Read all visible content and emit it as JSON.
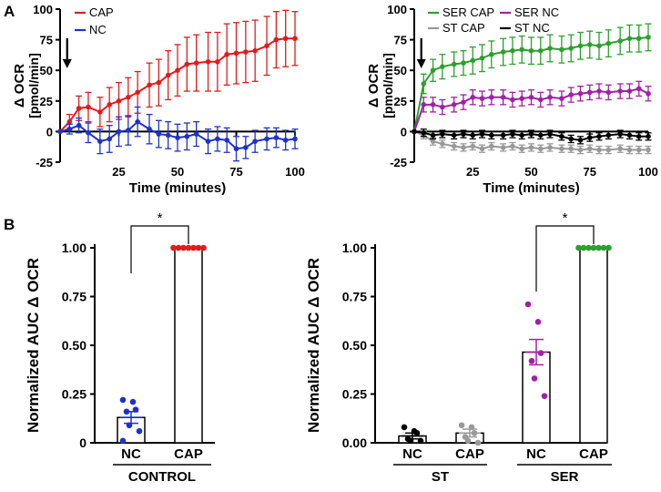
{
  "panel_labels": {
    "a": "A",
    "b": "B"
  },
  "colors": {
    "cap": "#e31a1c",
    "nc": "#1f31c8",
    "ser_cap": "#2ca02c",
    "ser_nc": "#a020a8",
    "st_cap": "#999999",
    "st_nc": "#000000"
  },
  "chart_data": [
    {
      "id": "A-left",
      "type": "line",
      "ylabel_line1": "Δ OCR",
      "ylabel_line2": "[pmol/min]",
      "xlabel": "Time (minutes)",
      "xlim": [
        0,
        100
      ],
      "ylim": [
        -25,
        100
      ],
      "xticks": [
        "25",
        "50",
        "75",
        "100"
      ],
      "yticks": [
        "-25",
        "0",
        "25",
        "50",
        "75",
        "100"
      ],
      "arrow_x": 3,
      "x": [
        0,
        4,
        8,
        12,
        17,
        21,
        25,
        29,
        33,
        38,
        42,
        46,
        50,
        54,
        58,
        63,
        67,
        71,
        75,
        79,
        83,
        88,
        92,
        96,
        100
      ],
      "series": [
        {
          "name": "CAP",
          "color": "#e31a1c",
          "values": [
            0,
            8,
            19,
            20,
            16,
            22,
            25,
            28,
            32,
            38,
            40,
            46,
            50,
            55,
            56,
            57,
            57,
            63,
            64,
            65,
            66,
            70,
            75,
            76,
            76
          ],
          "errors": [
            0,
            6,
            10,
            12,
            12,
            14,
            15,
            16,
            17,
            18,
            19,
            20,
            21,
            22,
            23,
            24,
            24,
            25,
            25,
            25,
            25,
            24,
            23,
            23,
            22
          ]
        },
        {
          "name": "NC",
          "color": "#1f31c8",
          "values": [
            0,
            2,
            5,
            -1,
            -8,
            -6,
            0,
            1,
            8,
            2,
            -2,
            -3,
            -5,
            -4,
            -2,
            -8,
            -6,
            -7,
            -14,
            -13,
            -8,
            -6,
            -5,
            -7,
            -6
          ],
          "errors": [
            0,
            4,
            6,
            8,
            10,
            11,
            12,
            12,
            12,
            12,
            11,
            11,
            11,
            11,
            10,
            10,
            10,
            10,
            10,
            9,
            9,
            9,
            8,
            8,
            8
          ]
        }
      ]
    },
    {
      "id": "A-right",
      "type": "line",
      "ylabel_line1": "Δ OCR",
      "ylabel_line2": "[pmol/min]",
      "xlabel": "Time (minutes)",
      "xlim": [
        0,
        100
      ],
      "ylim": [
        -25,
        100
      ],
      "xticks": [
        "25",
        "50",
        "75",
        "100"
      ],
      "yticks": [
        "-25",
        "0",
        "25",
        "50",
        "75",
        "100"
      ],
      "arrow_x": 3,
      "x": [
        0,
        4,
        8,
        12,
        17,
        21,
        25,
        29,
        33,
        38,
        42,
        46,
        50,
        54,
        58,
        63,
        67,
        71,
        75,
        79,
        83,
        88,
        92,
        96,
        100
      ],
      "series": [
        {
          "name": "SER CAP",
          "color": "#2ca02c",
          "values": [
            0,
            39,
            50,
            53,
            55,
            56,
            58,
            60,
            63,
            65,
            66,
            67,
            66,
            66,
            68,
            67,
            68,
            70,
            71,
            70,
            72,
            74,
            76,
            76,
            77
          ],
          "errors": [
            0,
            8,
            9,
            10,
            10,
            10,
            11,
            11,
            11,
            11,
            11,
            11,
            11,
            11,
            11,
            11,
            11,
            11,
            11,
            11,
            11,
            11,
            11,
            11,
            11
          ]
        },
        {
          "name": "SER NC",
          "color": "#a020a8",
          "values": [
            0,
            22,
            22,
            20,
            22,
            24,
            28,
            27,
            28,
            28,
            26,
            27,
            28,
            26,
            28,
            27,
            30,
            31,
            32,
            33,
            32,
            33,
            33,
            35,
            31
          ],
          "errors": [
            0,
            6,
            6,
            6,
            6,
            6,
            6,
            6,
            6,
            6,
            6,
            6,
            6,
            6,
            6,
            6,
            6,
            6,
            6,
            6,
            6,
            6,
            6,
            6,
            6
          ]
        },
        {
          "name": "ST CAP",
          "color": "#999999",
          "values": [
            0,
            -3,
            -8,
            -10,
            -12,
            -13,
            -12,
            -14,
            -12,
            -13,
            -12,
            -14,
            -13,
            -14,
            -13,
            -14,
            -14,
            -15,
            -14,
            -15,
            -15,
            -14,
            -15,
            -15,
            -15
          ],
          "errors": [
            0,
            3,
            3,
            3,
            3,
            3,
            3,
            3,
            3,
            3,
            3,
            3,
            3,
            3,
            3,
            3,
            3,
            3,
            3,
            3,
            3,
            3,
            3,
            3,
            3
          ]
        },
        {
          "name": "ST NC",
          "color": "#000000",
          "values": [
            0,
            -1,
            -3,
            -2,
            -3,
            -2,
            -3,
            -2,
            -3,
            -3,
            -2,
            -3,
            -2,
            -3,
            -2,
            -4,
            -6,
            -7,
            -5,
            -4,
            -3,
            -2,
            -3,
            -4,
            -4
          ],
          "errors": [
            0,
            3,
            3,
            3,
            3,
            3,
            3,
            3,
            3,
            3,
            3,
            3,
            3,
            3,
            3,
            3,
            3,
            3,
            3,
            3,
            3,
            3,
            3,
            3,
            3
          ]
        }
      ]
    },
    {
      "id": "B-left",
      "type": "bar",
      "ylabel": "Normalized AUC Δ OCR",
      "ylim": [
        0,
        1.0
      ],
      "yticks": [
        "0",
        "0.25",
        "0.50",
        "0.75",
        "1.00"
      ],
      "categories": [
        "NC",
        "CAP"
      ],
      "group_labels": [
        "CONTROL"
      ],
      "significance": "*",
      "bars": [
        {
          "label": "NC",
          "value": 0.13,
          "sem": 0.03,
          "color": "#1f31c8",
          "points": [
            0.22,
            0.21,
            0.17,
            0.16,
            0.09,
            0.06,
            0.01
          ]
        },
        {
          "label": "CAP",
          "value": 1.0,
          "sem": 0,
          "color": "#e31a1c",
          "points": [
            1.0,
            1.0,
            1.0,
            1.0,
            1.0,
            1.0,
            1.0
          ]
        }
      ]
    },
    {
      "id": "B-right",
      "type": "bar",
      "ylabel": "Normalized AUC Δ OCR",
      "ylim": [
        0,
        1.0
      ],
      "yticks": [
        "0.00",
        "0.25",
        "0.50",
        "0.75",
        "1.00"
      ],
      "categories": [
        "NC",
        "CAP",
        "NC",
        "CAP"
      ],
      "group_labels": [
        "ST",
        "SER"
      ],
      "significance": "*",
      "bars": [
        {
          "label": "NC",
          "value": 0.035,
          "sem": 0.015,
          "color": "#000000",
          "points": [
            0.08,
            0.06,
            0.05,
            0.02,
            0.01,
            0.01
          ]
        },
        {
          "label": "CAP",
          "value": 0.05,
          "sem": 0.02,
          "color": "#999999",
          "points": [
            0.09,
            0.08,
            0.05,
            0.03,
            0.01,
            0.0
          ]
        },
        {
          "label": "NC",
          "value": 0.465,
          "sem": 0.065,
          "color": "#a020a8",
          "points": [
            0.71,
            0.62,
            0.46,
            0.42,
            0.33,
            0.24
          ]
        },
        {
          "label": "CAP",
          "value": 1.0,
          "sem": 0,
          "color": "#2ca02c",
          "points": [
            1.0,
            1.0,
            1.0,
            1.0,
            1.0,
            1.0,
            1.0
          ]
        }
      ]
    }
  ]
}
